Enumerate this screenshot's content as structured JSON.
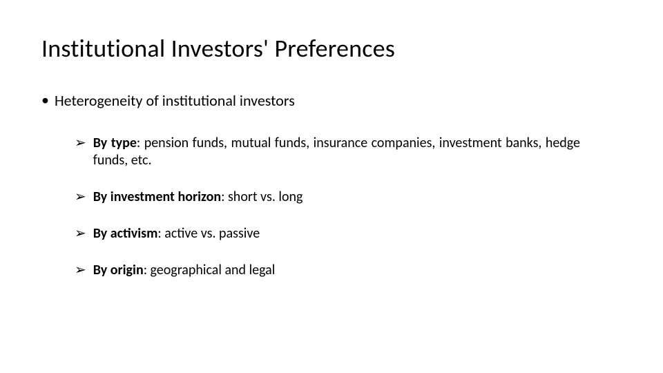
{
  "title": "Institutional Investors' Preferences",
  "level1_bullet_mark": "•",
  "level2_bullet_mark": "➢",
  "heterogeneity_label": "Heterogeneity of institutional investors",
  "items": {
    "by_type": {
      "label": "By type",
      "rest": ": pension funds, mutual funds, insurance companies, investment banks, hedge funds, etc."
    },
    "by_horizon": {
      "label": "By investment horizon",
      "rest": ": short vs. long"
    },
    "by_activism": {
      "label": "By activism",
      "rest": ": active vs. passive"
    },
    "by_origin": {
      "label": "By origin",
      "rest": ": geographical and legal"
    }
  },
  "colors": {
    "background": "#ffffff",
    "text": "#000000"
  },
  "typography": {
    "title_fontsize_pt": 28,
    "body_fontsize_pt": 17,
    "sub_fontsize_pt": 15,
    "font_family": "Calibri"
  }
}
